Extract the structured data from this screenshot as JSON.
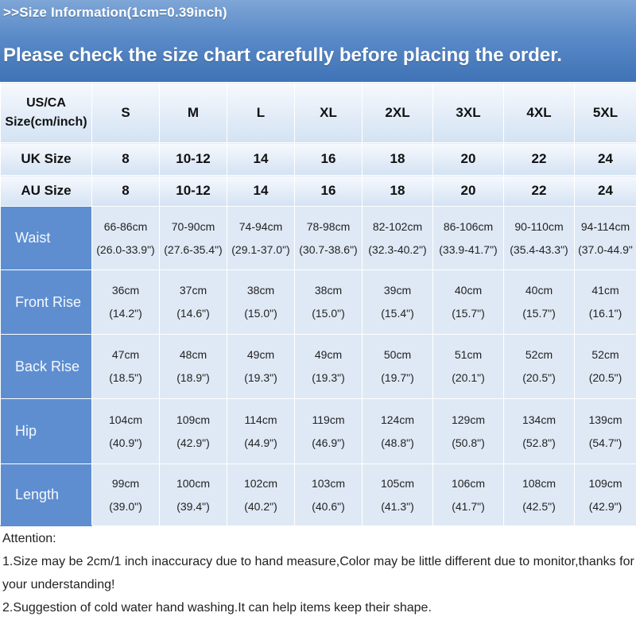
{
  "banner": {
    "subtitle": ">>Size Information(1cm=0.39inch)",
    "headline": "Please check the size chart carefully before placing the order."
  },
  "table": {
    "size_header_label": [
      "US/CA",
      "Size(cm/inch)"
    ],
    "sizes": [
      "S",
      "M",
      "L",
      "XL",
      "2XL",
      "3XL",
      "4XL",
      "5XL"
    ],
    "uk_label": "UK Size",
    "uk_values": [
      "8",
      "10-12",
      "14",
      "16",
      "18",
      "20",
      "22",
      "24"
    ],
    "au_label": "AU Size",
    "au_values": [
      "8",
      "10-12",
      "14",
      "16",
      "18",
      "20",
      "22",
      "24"
    ],
    "measurements": [
      {
        "label": "Waist",
        "cm": [
          "66-86cm",
          "70-90cm",
          "74-94cm",
          "78-98cm",
          "82-102cm",
          "86-106cm",
          "90-110cm",
          "94-114cm"
        ],
        "inch": [
          "(26.0-33.9\")",
          "(27.6-35.4\")",
          "(29.1-37.0\")",
          "(30.7-38.6\")",
          "(32.3-40.2\")",
          "(33.9-41.7\")",
          "(35.4-43.3\")",
          "(37.0-44.9\""
        ]
      },
      {
        "label": "Front Rise",
        "cm": [
          "36cm",
          "37cm",
          "38cm",
          "38cm",
          "39cm",
          "40cm",
          "40cm",
          "41cm"
        ],
        "inch": [
          "(14.2\")",
          "(14.6\")",
          "(15.0\")",
          "(15.0\")",
          "(15.4\")",
          "(15.7\")",
          "(15.7\")",
          "(16.1\")"
        ]
      },
      {
        "label": "Back Rise",
        "cm": [
          "47cm",
          "48cm",
          "49cm",
          "49cm",
          "50cm",
          "51cm",
          "52cm",
          "52cm"
        ],
        "inch": [
          "(18.5\")",
          "(18.9\")",
          "(19.3\")",
          "(19.3\")",
          "(19.7\")",
          "(20.1\")",
          "(20.5\")",
          "(20.5\")"
        ]
      },
      {
        "label": "Hip",
        "cm": [
          "104cm",
          "109cm",
          "114cm",
          "119cm",
          "124cm",
          "129cm",
          "134cm",
          "139cm"
        ],
        "inch": [
          "(40.9\")",
          "(42.9\")",
          "(44.9\")",
          "(46.9\")",
          "(48.8\")",
          "(50.8\")",
          "(52.8\")",
          "(54.7\")"
        ]
      },
      {
        "label": "Length",
        "cm": [
          "99cm",
          "100cm",
          "102cm",
          "103cm",
          "105cm",
          "106cm",
          "108cm",
          "109cm"
        ],
        "inch": [
          "(39.0\")",
          "(39.4\")",
          "(40.2\")",
          "(40.6\")",
          "(41.3\")",
          "(41.7\")",
          "(42.5\")",
          "(42.9\")"
        ]
      }
    ]
  },
  "notes": {
    "heading": "Attention:",
    "items": [
      "1.Size may be 2cm/1 inch inaccuracy due to hand measure,Color may be little different due to monitor,thanks for your understanding!",
      "2.Suggestion of cold water hand washing.It can help items keep their shape."
    ]
  }
}
